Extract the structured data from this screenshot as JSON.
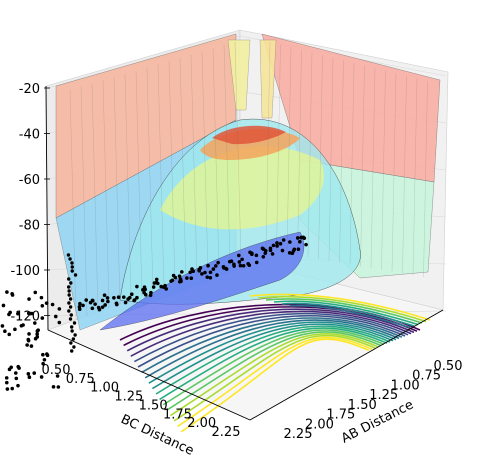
{
  "chart_data": {
    "type": "surface3d",
    "x_axis": {
      "label": "AB Distance",
      "ticks": [
        "0.50",
        "0.75",
        "1.00",
        "1.25",
        "1.50",
        "1.75",
        "2.00",
        "2.25"
      ],
      "range": [
        0.5,
        2.3
      ]
    },
    "y_axis": {
      "label": "BC Distance",
      "ticks": [
        "0.50",
        "0.75",
        "1.00",
        "1.25",
        "1.50",
        "1.75",
        "2.00",
        "2.25"
      ],
      "range": [
        0.5,
        2.3
      ]
    },
    "z_axis": {
      "label": "",
      "ticks": [
        "-20",
        "-40",
        "-60",
        "-80",
        "-100",
        "-120"
      ],
      "range": [
        -130,
        -20
      ]
    },
    "surface_colormap": "jet",
    "contour_colormap": "viridis",
    "scatter_color": "#000000",
    "grid": true
  }
}
